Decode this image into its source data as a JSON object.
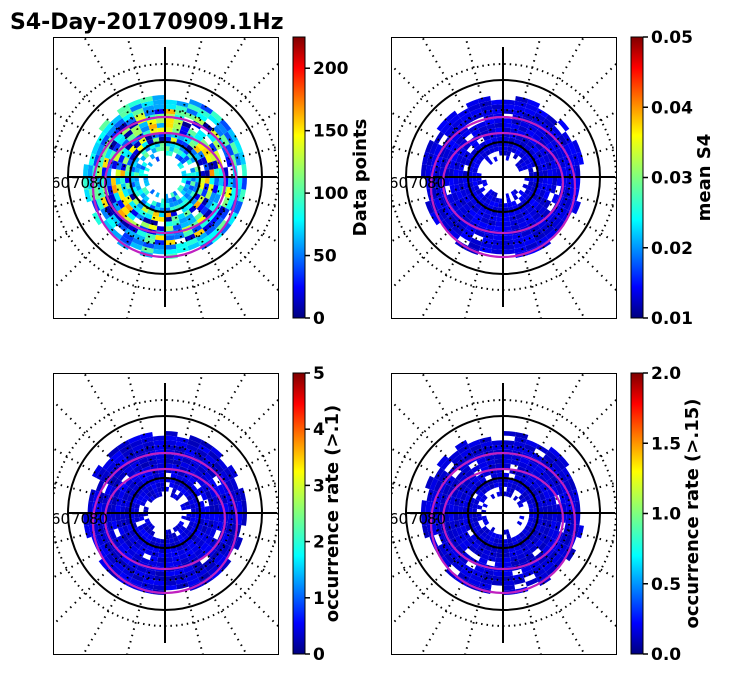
{
  "figure_title": "S4-Day-20170909.1Hz",
  "chart_data": [
    {
      "type": "heatmap",
      "projection": "polar",
      "panel": "top-left",
      "colorbar_label": "Data points",
      "colorbar_range": [
        0,
        225
      ],
      "colorbar_ticks": [
        "0",
        "50",
        "100",
        "150",
        "200"
      ],
      "colorbar_tick_values": [
        0,
        50,
        100,
        150,
        200
      ],
      "lat_labels": [
        "60",
        "70",
        "80"
      ],
      "cell_mean": 0.3,
      "cell_spread": 0.45
    },
    {
      "type": "heatmap",
      "projection": "polar",
      "panel": "top-right",
      "colorbar_label": "mean S4",
      "colorbar_range": [
        0.01,
        0.05
      ],
      "colorbar_ticks": [
        "0.01",
        "0.02",
        "0.03",
        "0.04",
        "0.05"
      ],
      "colorbar_tick_values": [
        0.01,
        0.02,
        0.03,
        0.04,
        0.05
      ],
      "lat_labels": [
        "60",
        "70",
        "80"
      ],
      "cell_mean": 0.01,
      "cell_spread": 0.06
    },
    {
      "type": "heatmap",
      "projection": "polar",
      "panel": "bottom-left",
      "colorbar_label": "occurrence rate (>.1)",
      "colorbar_range": [
        0,
        5
      ],
      "colorbar_ticks": [
        "0",
        "1",
        "2",
        "3",
        "4",
        "5"
      ],
      "colorbar_tick_values": [
        0,
        1,
        2,
        3,
        4,
        5
      ],
      "lat_labels": [
        "60",
        "70",
        "80"
      ],
      "cell_mean": 0.0,
      "cell_spread": 0.07
    },
    {
      "type": "heatmap",
      "projection": "polar",
      "panel": "bottom-right",
      "colorbar_label": "occurrence rate (>.15)",
      "colorbar_range": [
        0.0,
        2.0
      ],
      "colorbar_ticks": [
        "0.0",
        "0.5",
        "1.0",
        "1.5",
        "2.0"
      ],
      "colorbar_tick_values": [
        0.0,
        0.5,
        1.0,
        1.5,
        2.0
      ],
      "lat_labels": [
        "60",
        "70",
        "80"
      ],
      "cell_mean": 0.0,
      "cell_spread": 0.05
    }
  ],
  "colors": {
    "oval_line": "#c020c0",
    "grid_line": "#000000",
    "colormap": "jet"
  }
}
